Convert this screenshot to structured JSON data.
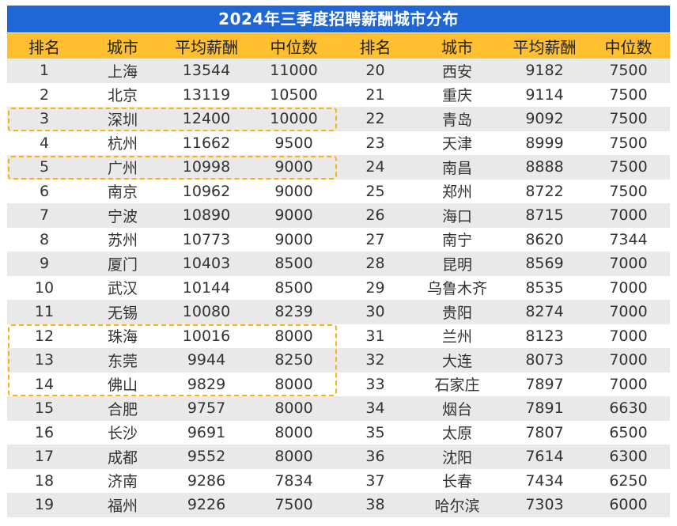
{
  "title": "2024年三季度招聘薪酬城市分布",
  "headers": [
    "排名",
    "城市",
    "平均薪酬",
    "中位数",
    "排名",
    "城市",
    "平均薪酬",
    "中位数"
  ],
  "highlight_color": "#f5b50a",
  "header_color": "#ffbf2e",
  "title_color": "#1f66d6",
  "rows": [
    [
      "1",
      "上海",
      "13544",
      "11000",
      "20",
      "西安",
      "9182",
      "7500"
    ],
    [
      "2",
      "北京",
      "13119",
      "10500",
      "21",
      "重庆",
      "9114",
      "7500"
    ],
    [
      "3",
      "深圳",
      "12400",
      "10000",
      "22",
      "青岛",
      "9092",
      "7500"
    ],
    [
      "4",
      "杭州",
      "11662",
      "9500",
      "23",
      "天津",
      "8999",
      "7500"
    ],
    [
      "5",
      "广州",
      "10998",
      "9000",
      "24",
      "南昌",
      "8888",
      "7500"
    ],
    [
      "6",
      "南京",
      "10962",
      "9000",
      "25",
      "郑州",
      "8722",
      "7500"
    ],
    [
      "7",
      "宁波",
      "10890",
      "9000",
      "26",
      "海口",
      "8715",
      "7000"
    ],
    [
      "8",
      "苏州",
      "10773",
      "9000",
      "27",
      "南宁",
      "8620",
      "7344"
    ],
    [
      "9",
      "厦门",
      "10403",
      "8500",
      "28",
      "昆明",
      "8569",
      "7000"
    ],
    [
      "10",
      "武汉",
      "10144",
      "8500",
      "29",
      "乌鲁木齐",
      "8535",
      "7000"
    ],
    [
      "11",
      "无锡",
      "10080",
      "8239",
      "30",
      "贵阳",
      "8274",
      "7000"
    ],
    [
      "12",
      "珠海",
      "10016",
      "8000",
      "31",
      "兰州",
      "8123",
      "7000"
    ],
    [
      "13",
      "东莞",
      "9944",
      "8250",
      "32",
      "大连",
      "8073",
      "7000"
    ],
    [
      "14",
      "佛山",
      "9829",
      "8000",
      "33",
      "石家庄",
      "7897",
      "7000"
    ],
    [
      "15",
      "合肥",
      "9757",
      "8000",
      "34",
      "烟台",
      "7891",
      "6630"
    ],
    [
      "16",
      "长沙",
      "9691",
      "8000",
      "35",
      "太原",
      "7807",
      "6500"
    ],
    [
      "17",
      "成都",
      "9552",
      "8000",
      "36",
      "沈阳",
      "7614",
      "6300"
    ],
    [
      "18",
      "济南",
      "9286",
      "7834",
      "37",
      "长春",
      "7434",
      "6250"
    ],
    [
      "19",
      "福州",
      "9226",
      "7500",
      "38",
      "哈尔滨",
      "7303",
      "6000"
    ]
  ]
}
